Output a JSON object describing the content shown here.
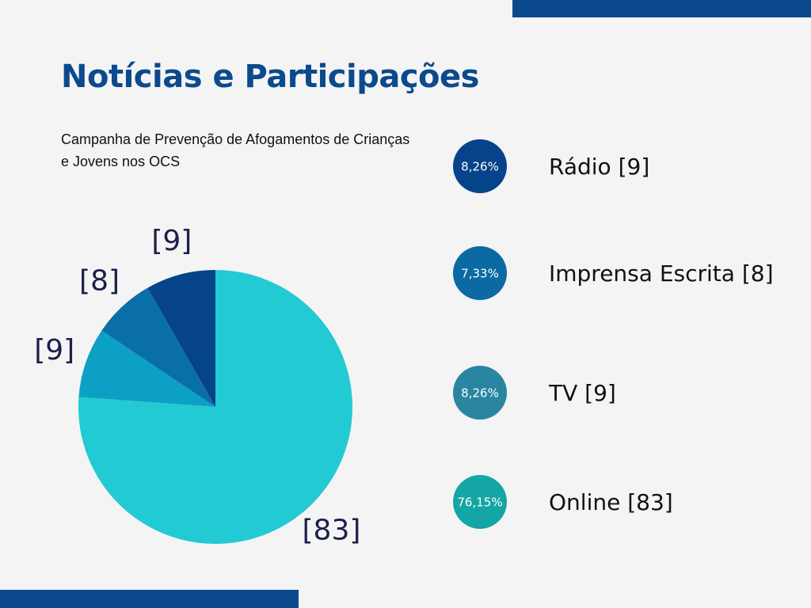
{
  "chart_data": {
    "type": "pie",
    "title": "Notícias e Participações",
    "subtitle": "Campanha de Prevenção de Afogamentos de Crianças e Jovens nos OCS",
    "categories": [
      "Rádio [9]",
      "Imprensa Escrita [8]",
      "TV [9]",
      "Online [83]"
    ],
    "values": [
      9,
      8,
      9,
      83
    ],
    "value_labels": [
      "[9]",
      "[8]",
      "[9]",
      "[83]"
    ],
    "percent_labels": [
      "8,26%",
      "7,33%",
      "8,26%",
      "76,15%"
    ],
    "colors": [
      "#05448a",
      "#0a6ea8",
      "#0ba0c4",
      "#22cad3"
    ],
    "legend_colors": [
      "#05448a",
      "#0b6aa2",
      "#2a86a0",
      "#16a5a5"
    ]
  }
}
